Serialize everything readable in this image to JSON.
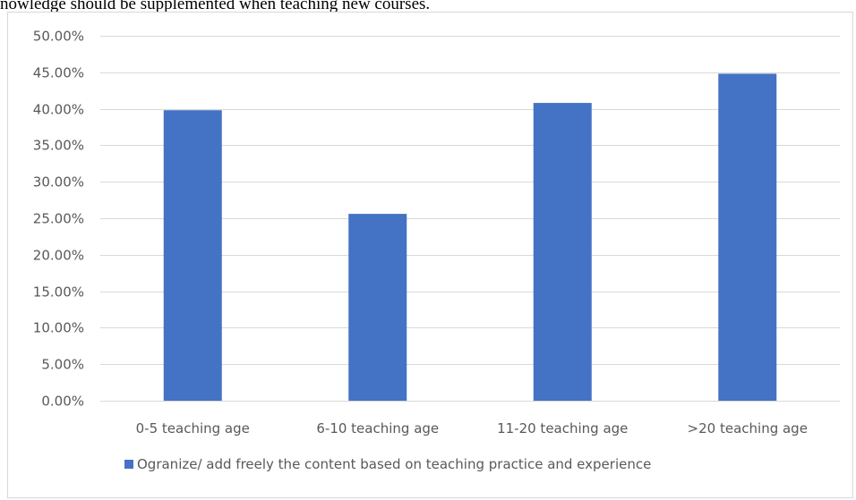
{
  "caption": "nowledge should be supplemented when teaching new courses.",
  "colors": {
    "bar": "#4472c4",
    "grid": "#d9d9d9",
    "axis_text": "#595959"
  },
  "chart_data": {
    "type": "bar",
    "categories": [
      "0-5 teaching age",
      "6-10 teaching age",
      "11-20 teaching age",
      ">20 teaching age"
    ],
    "series": [
      {
        "name": "Ogranize/ add freely the content based on teaching practice and experience",
        "values": [
          39.8,
          25.6,
          40.8,
          44.8
        ]
      }
    ],
    "ylim": [
      0,
      50
    ],
    "yticks": [
      0,
      5,
      10,
      15,
      20,
      25,
      30,
      35,
      40,
      45,
      50
    ],
    "ytick_labels": [
      "0.00%",
      "5.00%",
      "10.00%",
      "15.00%",
      "20.00%",
      "25.00%",
      "30.00%",
      "35.00%",
      "40.00%",
      "45.00%",
      "50.00%"
    ],
    "grid": true,
    "legend_position": "bottom"
  }
}
